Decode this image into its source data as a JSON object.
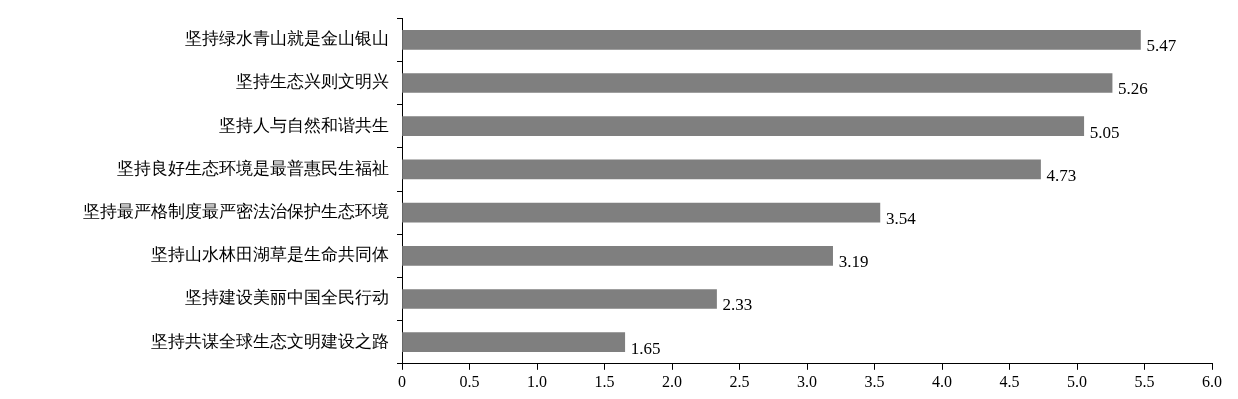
{
  "chart_data": {
    "type": "bar",
    "orientation": "horizontal",
    "categories": [
      "坚持绿水青山就是金山银山",
      "坚持生态兴则文明兴",
      "坚持人与自然和谐共生",
      "坚持良好生态环境是最普惠民生福祉",
      "坚持最严格制度最严密法治保护生态环境",
      "坚持山水林田湖草是生命共同体",
      "坚持建设美丽中国全民行动",
      "坚持共谋全球生态文明建设之路"
    ],
    "values": [
      5.47,
      5.26,
      5.05,
      4.73,
      3.54,
      3.19,
      2.33,
      1.65
    ],
    "color": "#7f7f7f",
    "xlim": [
      0,
      6
    ],
    "xticks": [
      0,
      0.5,
      {
        "value": 1,
        "label": "1.0"
      },
      1.5,
      {
        "value": 2,
        "label": "2.0"
      },
      2.5,
      {
        "value": 3,
        "label": "3.0"
      },
      3.5,
      {
        "value": 4,
        "label": "4.0"
      },
      4.5,
      {
        "value": 5,
        "label": "5.0"
      },
      5.5,
      {
        "value": 6,
        "label": "6.0"
      }
    ],
    "data_labels": true,
    "grid": false,
    "legend": false
  }
}
